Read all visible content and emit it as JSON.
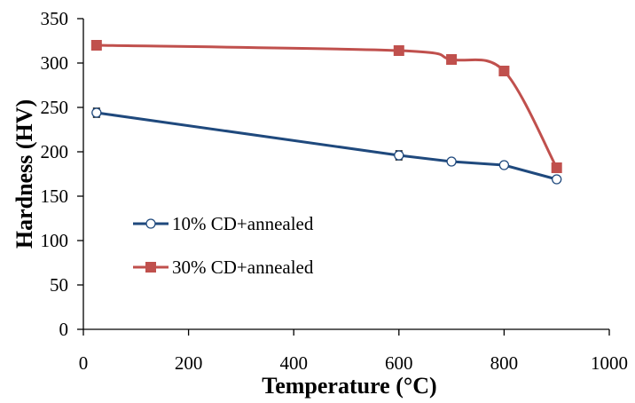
{
  "chart_data": {
    "type": "line",
    "title": "",
    "xlabel": "Temperature (°C)",
    "ylabel": "Hardness (HV)",
    "xlim": [
      0,
      1000
    ],
    "ylim": [
      0,
      350
    ],
    "xticks": [
      0,
      200,
      400,
      600,
      800,
      1000
    ],
    "yticks": [
      0,
      50,
      100,
      150,
      200,
      250,
      300,
      350
    ],
    "grid": false,
    "legend_position": "left-middle",
    "series": [
      {
        "name": "10% CD+annealed",
        "color": "#1f497d",
        "marker": "open-circle",
        "smooth": false,
        "x": [
          25,
          600,
          700,
          800,
          900
        ],
        "y": [
          244,
          196,
          189,
          185,
          169
        ],
        "error": [
          5,
          5,
          3,
          2,
          2
        ]
      },
      {
        "name": "30% CD+annealed",
        "color": "#c0504d",
        "marker": "filled-square",
        "smooth": true,
        "x": [
          25,
          600,
          700,
          800,
          900
        ],
        "y": [
          320,
          314,
          304,
          291,
          182
        ],
        "error": [
          0,
          0,
          0,
          0,
          0
        ]
      }
    ]
  }
}
